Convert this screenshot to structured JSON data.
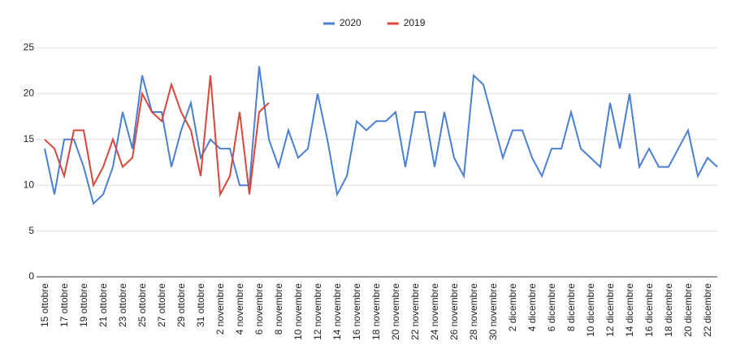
{
  "chart_data": {
    "type": "line",
    "categories": [
      "15 ottobre",
      null,
      "17 ottobre",
      null,
      "19 ottobre",
      null,
      "21 ottobre",
      null,
      "23 ottobre",
      null,
      "25 ottobre",
      null,
      "27 ottobre",
      null,
      "29 ottobre",
      null,
      "31 ottobre",
      null,
      "2 novembre",
      null,
      "4 novembre",
      null,
      "6 novembre",
      null,
      "8 novembre",
      null,
      "10 novembre",
      null,
      "12 novembre",
      null,
      "14 novembre",
      null,
      "16 novembre",
      null,
      "18 novembre",
      null,
      "20 novembre",
      null,
      "22 novembre",
      null,
      "24 novembre",
      null,
      "26 novembre",
      null,
      "28 novembre",
      null,
      "30 novembre",
      null,
      "2 dicembre",
      null,
      "4 dicembre",
      null,
      "6 dicembre",
      null,
      "8 dicembre",
      null,
      "10 dicembre",
      null,
      "12 dicembre",
      null,
      "14 dicembre",
      null,
      "16 dicembre",
      null,
      "18 dicembre",
      null,
      "20 dicembre",
      null,
      "22 dicembre",
      null
    ],
    "series": [
      {
        "name": "2020",
        "color": "#4a7fd4",
        "values": [
          14,
          9,
          15,
          15,
          12,
          8,
          9,
          12,
          18,
          14,
          22,
          18,
          18,
          12,
          16,
          19,
          13,
          15,
          14,
          14,
          10,
          10,
          23,
          15,
          12,
          16,
          13,
          14,
          20,
          15,
          9,
          11,
          17,
          16,
          17,
          17,
          18,
          12,
          18,
          18,
          12,
          18,
          13,
          11,
          22,
          21,
          17,
          13,
          16,
          16,
          13,
          11,
          14,
          14,
          18,
          14,
          13,
          12,
          19,
          14,
          20,
          12,
          14,
          12,
          12,
          14,
          16,
          11,
          13,
          12
        ]
      },
      {
        "name": "2019",
        "color": "#d9463b",
        "values": [
          15,
          14,
          11,
          16,
          16,
          10,
          12,
          15,
          12,
          13,
          20,
          18,
          17,
          21,
          18,
          16,
          11,
          22,
          9,
          11,
          18,
          9,
          18,
          19,
          null,
          null,
          null,
          null,
          null,
          null,
          null,
          null,
          null,
          null,
          null,
          null,
          null,
          null,
          null,
          null,
          null,
          null,
          null,
          null,
          null,
          null,
          null,
          null,
          null,
          null,
          null,
          null,
          null,
          null,
          null,
          null,
          null,
          null,
          null,
          null,
          null,
          null,
          null,
          null,
          null,
          null,
          null,
          null,
          null,
          null
        ]
      }
    ],
    "ylim": [
      0,
      25
    ],
    "yticks": [
      0,
      5,
      10,
      15,
      20,
      25
    ],
    "grid": true,
    "legend": "top"
  }
}
